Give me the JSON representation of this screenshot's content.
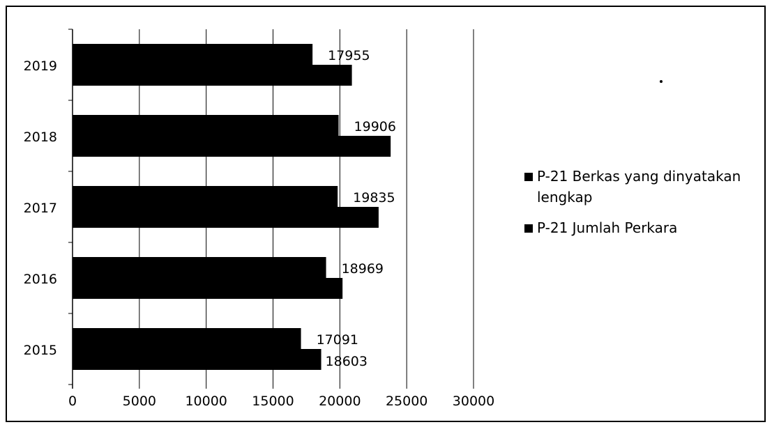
{
  "chart_data": {
    "type": "bar",
    "orientation": "horizontal",
    "categories": [
      "2015",
      "2016",
      "2017",
      "2018",
      "2019"
    ],
    "series": [
      {
        "name": "P-21 Berkas yang dinyatakan lengkap",
        "values": [
          17091,
          18969,
          19835,
          19906,
          17955
        ],
        "color": "#000000"
      },
      {
        "name": "P-21 Jumlah Perkara",
        "values": [
          18603,
          20200,
          22900,
          23800,
          20900
        ],
        "color": "#000000"
      }
    ],
    "data_labels": {
      "series_0": [
        "17091",
        "18969",
        "19835",
        "19906",
        "17955"
      ],
      "series_1": [
        "18603",
        "",
        "",
        "",
        ""
      ]
    },
    "x_ticks": [
      0,
      5000,
      10000,
      15000,
      20000,
      25000,
      30000
    ],
    "x_tick_labels": [
      "0",
      "5000",
      "10000",
      "15000",
      "20000",
      "25000",
      "30000"
    ],
    "xlim": [
      0,
      30000
    ],
    "title": "",
    "xlabel": "",
    "ylabel": "",
    "grid": true,
    "legend_position": "right"
  }
}
